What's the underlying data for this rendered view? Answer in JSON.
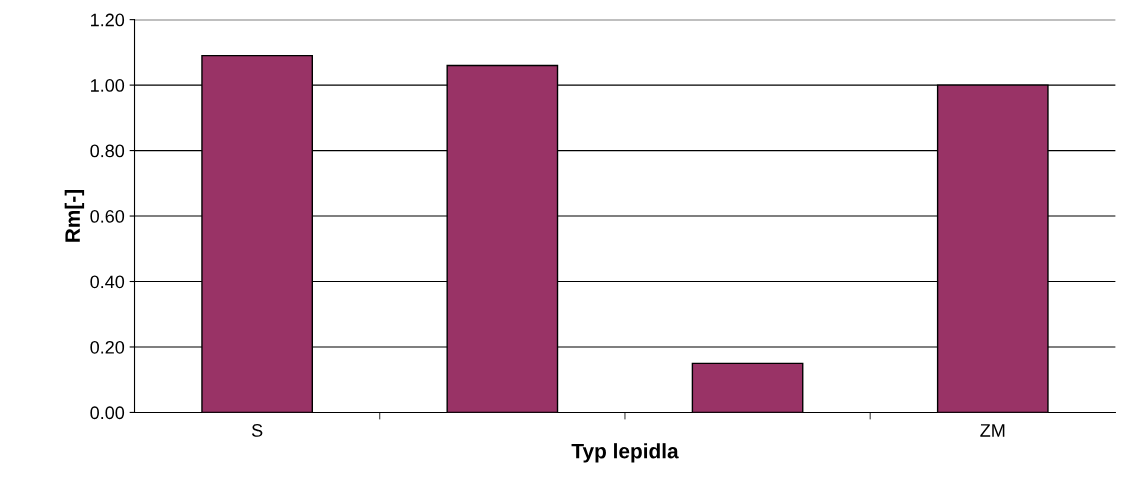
{
  "chart_data": {
    "type": "bar",
    "xlabel": "Typ lepidla",
    "ylabel": "Rm[-]",
    "categories": [
      "S",
      null,
      null,
      "ZM"
    ],
    "values": [
      1.09,
      1.06,
      0.15,
      1.0
    ],
    "color": "#993366",
    "ylim": [
      0,
      1.2
    ],
    "yticks": [
      {
        "value": 0,
        "label": "0.00"
      },
      {
        "value": 0.2,
        "label": "0.20"
      },
      {
        "value": 0.4,
        "label": "0.40"
      },
      {
        "value": 0.6,
        "label": "0.60"
      },
      {
        "value": 0.8,
        "label": "0.80"
      },
      {
        "value": 1.0,
        "label": "1.00"
      },
      {
        "value": 1.2,
        "label": "1.20"
      }
    ],
    "grid": "y",
    "legend": false
  }
}
